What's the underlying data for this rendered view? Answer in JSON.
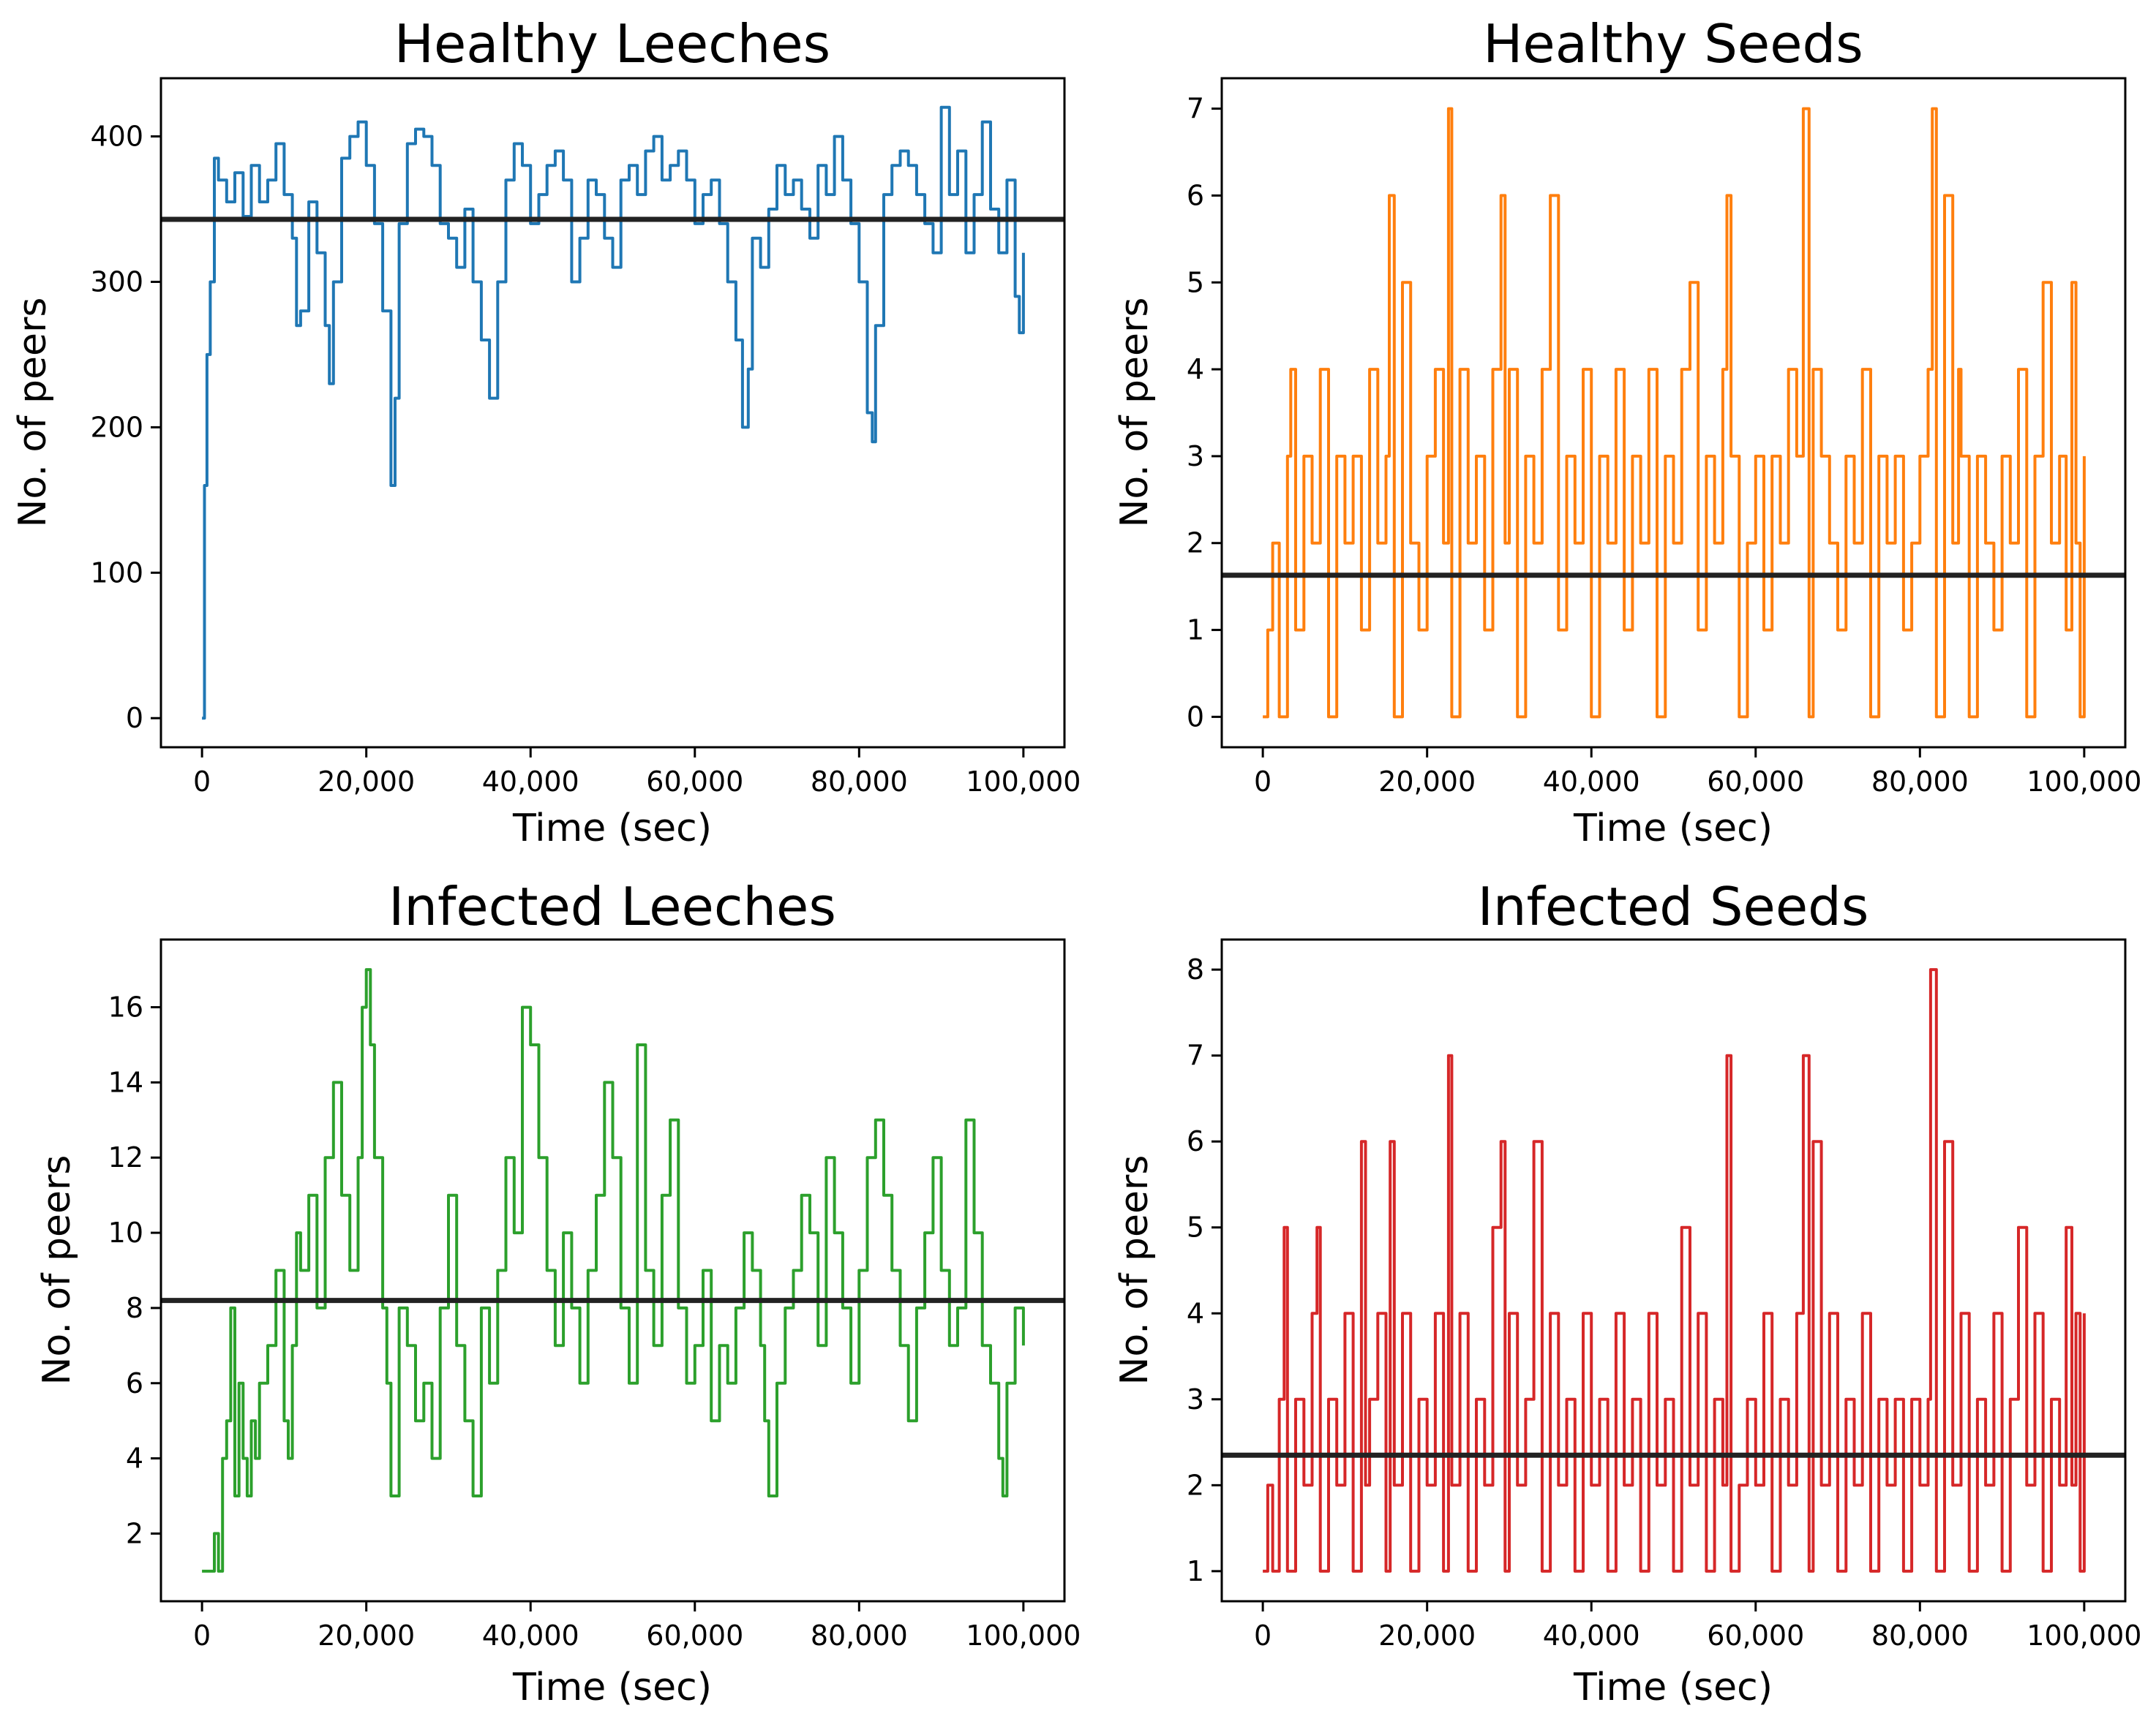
{
  "chart_data": [
    {
      "type": "line",
      "title": "Healthy Leeches",
      "xlabel": "Time (sec)",
      "ylabel": "No. of peers",
      "xlim": [
        -5000,
        105000
      ],
      "ylim": [
        -20,
        440
      ],
      "x_ticks": [
        0,
        20000,
        40000,
        60000,
        80000,
        100000
      ],
      "x_tick_labels": [
        "0",
        "20,000",
        "40,000",
        "60,000",
        "80,000",
        "100,000"
      ],
      "y_ticks": [
        0,
        100,
        200,
        300,
        400
      ],
      "y_tick_labels": [
        "0",
        "100",
        "200",
        "300",
        "400"
      ],
      "color": "#1f77b4",
      "mean": 343,
      "series": [
        {
          "name": "Healthy Leeches",
          "x": [
            0,
            300,
            600,
            1000,
            1500,
            2000,
            3000,
            4000,
            5000,
            6000,
            7000,
            8000,
            9000,
            10000,
            11000,
            11500,
            12000,
            13000,
            14000,
            15000,
            15500,
            16000,
            17000,
            18000,
            19000,
            20000,
            21000,
            22000,
            23000,
            23500,
            24000,
            25000,
            26000,
            27000,
            28000,
            29000,
            30000,
            31000,
            32000,
            33000,
            34000,
            35000,
            36000,
            37000,
            38000,
            39000,
            40000,
            41000,
            42000,
            43000,
            44000,
            45000,
            46000,
            47000,
            48000,
            49000,
            50000,
            51000,
            52000,
            53000,
            54000,
            55000,
            56000,
            57000,
            58000,
            59000,
            60000,
            61000,
            62000,
            63000,
            64000,
            65000,
            65800,
            66500,
            67000,
            68000,
            69000,
            70000,
            71000,
            72000,
            73000,
            74000,
            75000,
            76000,
            77000,
            78000,
            79000,
            80000,
            81000,
            81600,
            82000,
            83000,
            84000,
            85000,
            86000,
            87000,
            88000,
            89000,
            90000,
            91000,
            92000,
            93000,
            94000,
            95000,
            96000,
            97000,
            98000,
            99000,
            99500,
            100000
          ],
          "y": [
            0,
            160,
            250,
            300,
            385,
            370,
            355,
            375,
            345,
            380,
            355,
            370,
            395,
            360,
            330,
            270,
            280,
            355,
            320,
            270,
            230,
            300,
            385,
            400,
            410,
            380,
            340,
            280,
            160,
            220,
            340,
            395,
            405,
            400,
            380,
            340,
            330,
            310,
            350,
            300,
            260,
            220,
            300,
            370,
            395,
            380,
            340,
            360,
            380,
            390,
            370,
            300,
            330,
            370,
            360,
            330,
            310,
            370,
            380,
            360,
            390,
            400,
            370,
            380,
            390,
            370,
            340,
            360,
            370,
            340,
            300,
            260,
            200,
            240,
            330,
            310,
            350,
            380,
            360,
            370,
            350,
            330,
            380,
            360,
            400,
            370,
            340,
            300,
            210,
            190,
            270,
            360,
            380,
            390,
            380,
            360,
            340,
            320,
            420,
            360,
            390,
            320,
            360,
            410,
            350,
            320,
            370,
            290,
            265,
            320
          ]
        }
      ]
    },
    {
      "type": "line",
      "title": "Healthy Seeds",
      "xlabel": "Time (sec)",
      "ylabel": "No. of peers",
      "xlim": [
        -5000,
        105000
      ],
      "ylim": [
        -0.35,
        7.35
      ],
      "x_ticks": [
        0,
        20000,
        40000,
        60000,
        80000,
        100000
      ],
      "x_tick_labels": [
        "0",
        "20,000",
        "40,000",
        "60,000",
        "80,000",
        "100,000"
      ],
      "y_ticks": [
        0,
        1,
        2,
        3,
        4,
        5,
        6,
        7
      ],
      "y_tick_labels": [
        "0",
        "1",
        "2",
        "3",
        "4",
        "5",
        "6",
        "7"
      ],
      "color": "#ff7f0e",
      "mean": 1.63,
      "series": [
        {
          "name": "Healthy Seeds",
          "x": [
            0,
            600,
            1200,
            2000,
            3000,
            3400,
            4000,
            5000,
            6000,
            7000,
            8000,
            9000,
            10000,
            11000,
            12000,
            13000,
            14000,
            15000,
            15400,
            16000,
            17000,
            18000,
            19000,
            20000,
            21000,
            22000,
            22600,
            23000,
            24000,
            25000,
            26000,
            27000,
            28000,
            29000,
            29500,
            30000,
            31000,
            32000,
            33000,
            34000,
            35000,
            36000,
            37000,
            38000,
            39000,
            40000,
            41000,
            42000,
            43000,
            44000,
            45000,
            46000,
            47000,
            48000,
            49000,
            50000,
            51000,
            52000,
            53000,
            54000,
            55000,
            56000,
            56500,
            57000,
            58000,
            59000,
            60000,
            61000,
            62000,
            63000,
            64000,
            65000,
            65800,
            66500,
            67000,
            68000,
            69000,
            70000,
            71000,
            72000,
            73000,
            74000,
            75000,
            76000,
            77000,
            78000,
            79000,
            80000,
            81000,
            81500,
            82000,
            83000,
            84000,
            84700,
            85000,
            86000,
            87000,
            88000,
            89000,
            90000,
            91000,
            92000,
            93000,
            94000,
            95000,
            96000,
            97000,
            97800,
            98500,
            99000,
            99500,
            100000
          ],
          "y": [
            0,
            1,
            2,
            0,
            3,
            4,
            1,
            3,
            2,
            4,
            0,
            3,
            2,
            3,
            1,
            4,
            2,
            3,
            6,
            0,
            5,
            2,
            1,
            3,
            4,
            2,
            7,
            0,
            4,
            2,
            3,
            1,
            4,
            6,
            2,
            4,
            0,
            3,
            2,
            4,
            6,
            1,
            3,
            2,
            4,
            0,
            3,
            2,
            4,
            1,
            3,
            2,
            4,
            0,
            3,
            2,
            4,
            5,
            1,
            3,
            2,
            4,
            6,
            3,
            0,
            2,
            3,
            1,
            3,
            2,
            4,
            3,
            7,
            0,
            4,
            3,
            2,
            1,
            3,
            2,
            4,
            0,
            3,
            2,
            3,
            1,
            2,
            3,
            4,
            7,
            0,
            6,
            2,
            4,
            3,
            0,
            3,
            2,
            1,
            3,
            2,
            4,
            0,
            3,
            5,
            2,
            3,
            1,
            5,
            2,
            0,
            3
          ]
        }
      ]
    },
    {
      "type": "line",
      "title": "Infected Leeches",
      "xlabel": "Time (sec)",
      "ylabel": "No. of peers",
      "xlim": [
        -5000,
        105000
      ],
      "ylim": [
        0.2,
        17.8
      ],
      "x_ticks": [
        0,
        20000,
        40000,
        60000,
        80000,
        100000
      ],
      "x_tick_labels": [
        "0",
        "20,000",
        "40,000",
        "60,000",
        "80,000",
        "100,000"
      ],
      "y_ticks": [
        2,
        4,
        6,
        8,
        10,
        12,
        14,
        16
      ],
      "y_tick_labels": [
        "2",
        "4",
        "6",
        "8",
        "10",
        "12",
        "14",
        "16"
      ],
      "color": "#2ca02c",
      "mean": 8.2,
      "series": [
        {
          "name": "Infected Leeches",
          "x": [
            0,
            800,
            1500,
            2000,
            2500,
            3000,
            3500,
            4000,
            4500,
            5000,
            5500,
            6000,
            6500,
            7000,
            8000,
            9000,
            10000,
            10500,
            11000,
            11500,
            12000,
            13000,
            14000,
            15000,
            16000,
            17000,
            18000,
            19000,
            19500,
            20000,
            20500,
            21000,
            22000,
            22500,
            23000,
            24000,
            25000,
            26000,
            27000,
            28000,
            29000,
            30000,
            31000,
            32000,
            33000,
            34000,
            35000,
            36000,
            37000,
            38000,
            39000,
            40000,
            41000,
            42000,
            43000,
            44000,
            45000,
            46000,
            47000,
            48000,
            49000,
            50000,
            51000,
            52000,
            53000,
            54000,
            55000,
            56000,
            57000,
            58000,
            59000,
            60000,
            61000,
            62000,
            63000,
            64000,
            65000,
            66000,
            67000,
            68000,
            68500,
            69000,
            70000,
            71000,
            72000,
            73000,
            74000,
            75000,
            76000,
            77000,
            78000,
            79000,
            80000,
            81000,
            82000,
            83000,
            84000,
            85000,
            86000,
            87000,
            88000,
            89000,
            90000,
            91000,
            92000,
            93000,
            94000,
            95000,
            96000,
            97000,
            97500,
            98000,
            99000,
            100000
          ],
          "y": [
            1,
            1,
            2,
            1,
            4,
            5,
            8,
            3,
            6,
            4,
            3,
            5,
            4,
            6,
            7,
            9,
            5,
            4,
            7,
            10,
            9,
            11,
            8,
            12,
            14,
            11,
            9,
            12,
            16,
            17,
            15,
            12,
            8,
            6,
            3,
            8,
            7,
            5,
            6,
            4,
            8,
            11,
            7,
            5,
            3,
            8,
            6,
            9,
            12,
            10,
            16,
            15,
            12,
            9,
            7,
            10,
            8,
            6,
            9,
            11,
            14,
            12,
            8,
            6,
            15,
            9,
            7,
            11,
            13,
            8,
            6,
            7,
            9,
            5,
            7,
            6,
            8,
            10,
            9,
            7,
            5,
            3,
            6,
            8,
            9,
            11,
            10,
            7,
            12,
            10,
            8,
            6,
            9,
            12,
            13,
            11,
            9,
            7,
            5,
            8,
            10,
            12,
            9,
            7,
            8,
            13,
            10,
            7,
            6,
            4,
            3,
            6,
            8,
            7
          ]
        }
      ]
    },
    {
      "type": "line",
      "title": "Infected Seeds",
      "xlabel": "Time (sec)",
      "ylabel": "No. of peers",
      "xlim": [
        -5000,
        105000
      ],
      "ylim": [
        0.65,
        8.35
      ],
      "x_ticks": [
        0,
        20000,
        40000,
        60000,
        80000,
        100000
      ],
      "x_tick_labels": [
        "0",
        "20,000",
        "40,000",
        "60,000",
        "80,000",
        "100,000"
      ],
      "y_ticks": [
        1,
        2,
        3,
        4,
        5,
        6,
        7,
        8
      ],
      "y_tick_labels": [
        "1",
        "2",
        "3",
        "4",
        "5",
        "6",
        "7",
        "8"
      ],
      "color": "#d62728",
      "mean": 2.35,
      "series": [
        {
          "name": "Infected Seeds",
          "x": [
            0,
            600,
            1200,
            2000,
            2600,
            3000,
            4000,
            5000,
            6000,
            6600,
            7000,
            8000,
            9000,
            10000,
            11000,
            12000,
            12500,
            13000,
            14000,
            15000,
            15500,
            16000,
            17000,
            18000,
            19000,
            20000,
            21000,
            22000,
            22600,
            23000,
            24000,
            25000,
            26000,
            27000,
            28000,
            29000,
            29500,
            30000,
            31000,
            32000,
            33000,
            34000,
            35000,
            36000,
            37000,
            38000,
            39000,
            40000,
            41000,
            42000,
            43000,
            44000,
            45000,
            46000,
            47000,
            48000,
            49000,
            50000,
            51000,
            52000,
            53000,
            54000,
            55000,
            56000,
            56500,
            57000,
            58000,
            59000,
            60000,
            61000,
            62000,
            63000,
            64000,
            65000,
            65800,
            66500,
            67000,
            68000,
            69000,
            70000,
            71000,
            72000,
            73000,
            74000,
            75000,
            76000,
            77000,
            78000,
            79000,
            80000,
            81000,
            81300,
            82000,
            83000,
            84000,
            85000,
            86000,
            87000,
            88000,
            89000,
            90000,
            91000,
            92000,
            93000,
            94000,
            95000,
            96000,
            97000,
            97800,
            98500,
            99000,
            99500,
            100000
          ],
          "y": [
            1,
            2,
            1,
            3,
            5,
            1,
            3,
            2,
            4,
            5,
            1,
            3,
            2,
            4,
            1,
            6,
            2,
            3,
            4,
            1,
            6,
            2,
            4,
            1,
            3,
            2,
            4,
            1,
            7,
            2,
            4,
            1,
            3,
            2,
            5,
            6,
            1,
            4,
            2,
            3,
            6,
            1,
            4,
            2,
            3,
            1,
            4,
            2,
            3,
            1,
            4,
            2,
            3,
            1,
            4,
            2,
            3,
            1,
            5,
            2,
            4,
            1,
            3,
            2,
            7,
            1,
            2,
            3,
            2,
            4,
            1,
            3,
            2,
            4,
            7,
            1,
            6,
            2,
            4,
            1,
            3,
            2,
            4,
            1,
            3,
            2,
            3,
            1,
            3,
            2,
            3,
            8,
            1,
            6,
            2,
            4,
            1,
            3,
            2,
            4,
            1,
            3,
            5,
            2,
            4,
            1,
            3,
            2,
            5,
            2,
            4,
            1,
            4
          ]
        }
      ]
    }
  ]
}
